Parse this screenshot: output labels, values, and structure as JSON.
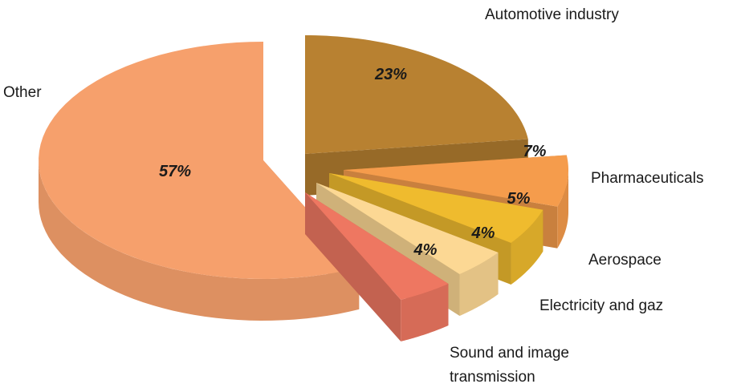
{
  "chart_data": {
    "type": "pie",
    "title": "",
    "categories": [
      "Automotive industry",
      "Pharmaceuticals",
      "Aerospace",
      "Electricity and gaz",
      "Sound and image\ntransmission",
      "Other"
    ],
    "values": [
      23,
      7,
      5,
      4,
      4,
      57
    ],
    "value_labels": [
      "23%",
      "7%",
      "5%",
      "4%",
      "4%",
      "57%"
    ],
    "colors": [
      "#b88131",
      "#f59c4c",
      "#efbb2e",
      "#fcd894",
      "#ee7761",
      "#f6a06c"
    ],
    "exploded": true,
    "style": "3d"
  }
}
